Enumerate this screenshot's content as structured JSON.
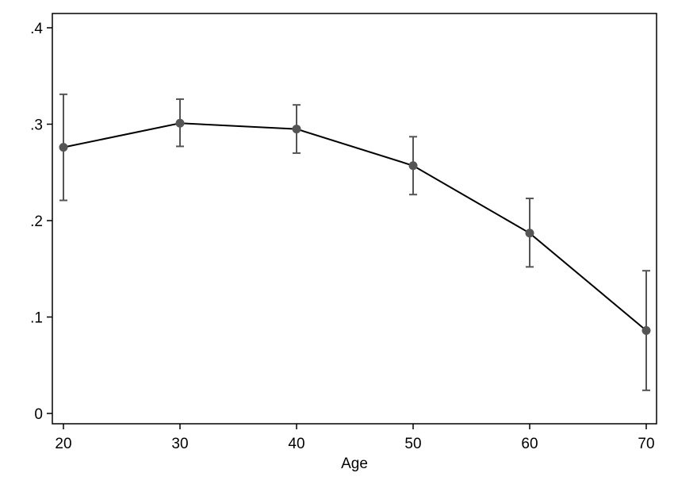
{
  "chart_data": {
    "type": "line",
    "title": "",
    "xlabel": "Age",
    "ylabel": "",
    "x": [
      20,
      30,
      40,
      50,
      60,
      70
    ],
    "series": [
      {
        "values": [
          0.276,
          0.301,
          0.295,
          0.257,
          0.187,
          0.086
        ],
        "ci_lower": [
          0.221,
          0.277,
          0.27,
          0.227,
          0.152,
          0.024
        ],
        "ci_upper": [
          0.331,
          0.326,
          0.32,
          0.287,
          0.223,
          0.148
        ]
      }
    ],
    "xlim": [
      20,
      70
    ],
    "ylim": [
      0,
      0.4
    ],
    "x_ticks": [
      20,
      30,
      40,
      50,
      60,
      70
    ],
    "x_tick_labels": [
      "20",
      "30",
      "40",
      "50",
      "60",
      "70"
    ],
    "y_ticks": [
      0,
      0.1,
      0.2,
      0.3,
      0.4
    ],
    "y_tick_labels": [
      "0",
      ".1",
      ".2",
      ".3",
      ".4"
    ],
    "grid": false,
    "legend": "none",
    "colors": {
      "line": "#000000",
      "marker": "#555555",
      "error_bar": "#555555",
      "frame": "#000000"
    }
  }
}
